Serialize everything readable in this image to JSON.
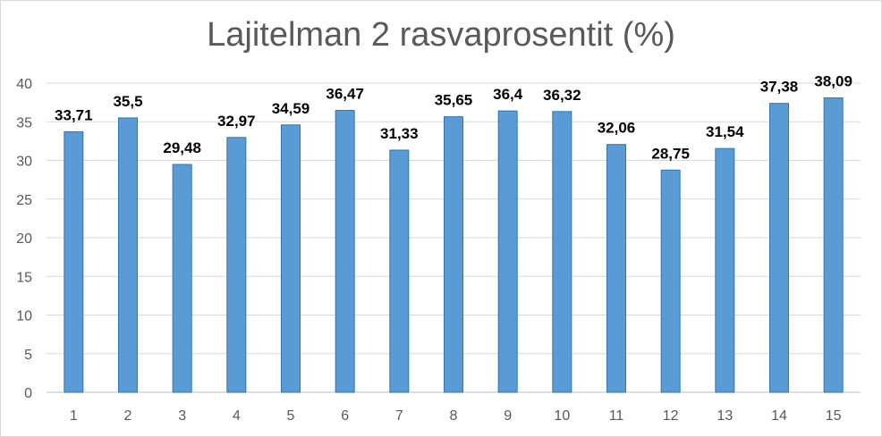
{
  "chart_data": {
    "type": "bar",
    "title": "Lajitelman 2 rasvaprosentit (%)",
    "xlabel": "",
    "ylabel": "",
    "categories": [
      "1",
      "2",
      "3",
      "4",
      "5",
      "6",
      "7",
      "8",
      "9",
      "10",
      "11",
      "12",
      "13",
      "14",
      "15"
    ],
    "values": [
      33.71,
      35.5,
      29.48,
      32.97,
      34.59,
      36.47,
      31.33,
      35.65,
      36.4,
      36.32,
      32.06,
      28.75,
      31.54,
      37.38,
      38.09
    ],
    "value_labels": [
      "33,71",
      "35,5",
      "29,48",
      "32,97",
      "34,59",
      "36,47",
      "31,33",
      "35,65",
      "36,4",
      "36,32",
      "32,06",
      "28,75",
      "31,54",
      "37,38",
      "38,09"
    ],
    "yticks": [
      "0",
      "5",
      "10",
      "15",
      "20",
      "25",
      "30",
      "35",
      "40"
    ],
    "ylim": [
      0,
      40
    ],
    "grid": true,
    "legend": "none",
    "colors": {
      "bar_fill": "#5b9bd5",
      "bar_border": "#2e75b6",
      "grid": "#d9d9d9"
    }
  }
}
